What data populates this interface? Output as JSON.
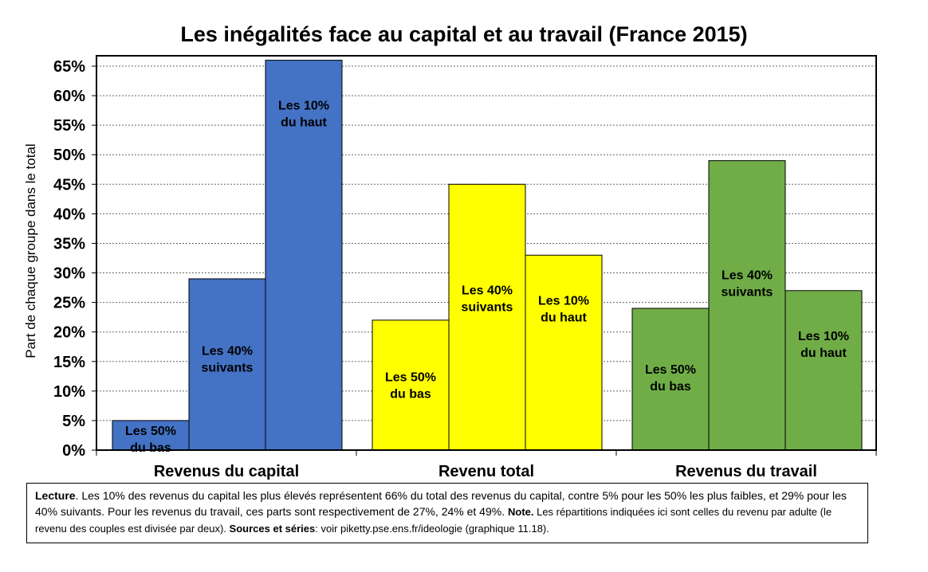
{
  "chart_data": {
    "type": "bar",
    "title": "Les inégalités face au capital et au travail (France 2015)",
    "ylabel": "Part de chaque groupe dans le total",
    "ylim": [
      0,
      0.65
    ],
    "yticks": [
      "0%",
      "5%",
      "10%",
      "15%",
      "20%",
      "25%",
      "30%",
      "35%",
      "40%",
      "45%",
      "50%",
      "55%",
      "60%",
      "65%"
    ],
    "grid": true,
    "groups": [
      {
        "name": "Revenus du capital",
        "color": "#4472C4",
        "bars": [
          {
            "label_line1": "Les 50%",
            "label_line2": "du bas",
            "value": 0.05
          },
          {
            "label_line1": "Les 40%",
            "label_line2": "suivants",
            "value": 0.29
          },
          {
            "label_line1": "Les 10%",
            "label_line2": "du haut",
            "value": 0.66
          }
        ]
      },
      {
        "name": "Revenu total",
        "color": "#FFFF00",
        "bars": [
          {
            "label_line1": "Les 50%",
            "label_line2": "du bas",
            "value": 0.22
          },
          {
            "label_line1": "Les 40%",
            "label_line2": "suivants",
            "value": 0.45
          },
          {
            "label_line1": "Les 10%",
            "label_line2": "du haut",
            "value": 0.33
          }
        ]
      },
      {
        "name": "Revenus du travail",
        "color": "#70AD47",
        "bars": [
          {
            "label_line1": "Les 50%",
            "label_line2": "du bas",
            "value": 0.24
          },
          {
            "label_line1": "Les 40%",
            "label_line2": "suivants",
            "value": 0.49
          },
          {
            "label_line1": "Les 10%",
            "label_line2": "du haut",
            "value": 0.27
          }
        ]
      }
    ]
  },
  "note": {
    "lecture_label": "Lecture",
    "lecture_text": ". Les 10% des revenus du capital les plus élevés représentent 66% du total des revenus du capital, contre 5% pour les 50% les plus faibles, et 29% pour les 40% suivants. Pour les revenus du travail, ces parts sont respectivement de 27%, 24% et 49%.",
    "note_label": "Note.",
    "note_text": " Les répartitions indiquées ici sont celles du revenu par adulte (le revenu des couples est divisée par deux).",
    "sources_label": "Sources et séries",
    "sources_text": ": voir piketty.pse.ens.fr/ideologie (graphique 11.18)."
  }
}
